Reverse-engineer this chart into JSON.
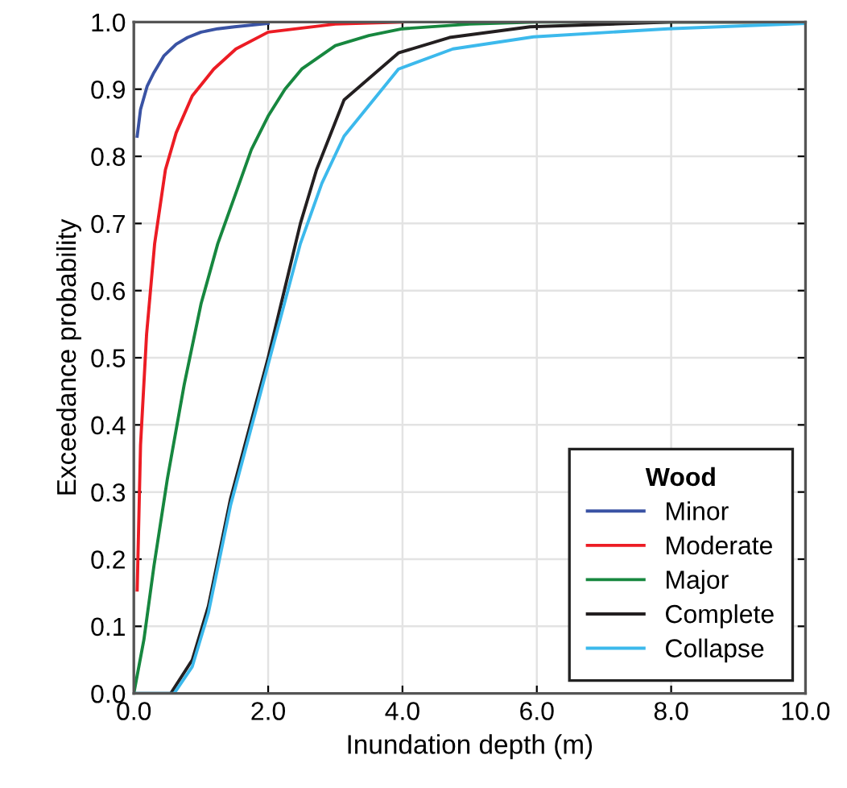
{
  "chart_data": {
    "type": "line",
    "xlabel": "Inundation depth (m)",
    "ylabel": "Exceedance probability",
    "legend_title": "Wood",
    "xlim": [
      0,
      10
    ],
    "ylim": [
      0,
      1
    ],
    "xticks": [
      {
        "value": 0,
        "label": "0.0"
      },
      {
        "value": 2,
        "label": "2.0"
      },
      {
        "value": 4,
        "label": "4.0"
      },
      {
        "value": 6,
        "label": "6.0"
      },
      {
        "value": 8,
        "label": "8.0"
      },
      {
        "value": 10,
        "label": "10.0"
      }
    ],
    "yticks": [
      {
        "value": 0,
        "label": "0.0"
      },
      0.1,
      0.2,
      0.3,
      0.4,
      0.5,
      0.6,
      0.7,
      0.8,
      0.9,
      {
        "value": 1,
        "label": "1.0"
      }
    ],
    "grid": true,
    "legend": "bottom right",
    "marker": "none",
    "line_style": "solid",
    "series": [
      {
        "name": "Minor",
        "color": "#3a53a4",
        "x": [
          0.05,
          0.1,
          0.2,
          0.3,
          0.45,
          0.63,
          0.8,
          1.0,
          1.25,
          1.5,
          2.0
        ],
        "values": [
          0.83,
          0.87,
          0.905,
          0.925,
          0.95,
          0.967,
          0.977,
          0.985,
          0.99,
          0.993,
          0.998
        ]
      },
      {
        "name": "Moderate",
        "color": "#ec1c24",
        "x": [
          0.05,
          0.1,
          0.19,
          0.31,
          0.47,
          0.63,
          0.87,
          1.19,
          1.52,
          2.0,
          3.0,
          4.0
        ],
        "values": [
          0.154,
          0.37,
          0.535,
          0.67,
          0.78,
          0.835,
          0.89,
          0.93,
          0.96,
          0.985,
          0.997,
          1
        ]
      },
      {
        "name": "Major",
        "color": "#17873f",
        "x": [
          0,
          0.15,
          0.3,
          0.5,
          0.75,
          1.0,
          1.25,
          1.5,
          1.75,
          2.0,
          2.25,
          2.5,
          3.0,
          3.5,
          4.0,
          5,
          6,
          10
        ],
        "values": [
          0,
          0.08,
          0.19,
          0.32,
          0.46,
          0.58,
          0.67,
          0.74,
          0.81,
          0.86,
          0.9,
          0.93,
          0.965,
          0.98,
          0.99,
          0.997,
          1,
          1
        ]
      },
      {
        "name": "Complete",
        "color": "#231f20",
        "x": [
          0,
          0.55,
          0.87,
          1.11,
          1.44,
          1.76,
          2.0,
          2.24,
          2.48,
          2.72,
          3.13,
          3.94,
          4.7,
          5.9,
          8,
          10
        ],
        "values": [
          0,
          0,
          0.05,
          0.13,
          0.29,
          0.41,
          0.5,
          0.6,
          0.7,
          0.78,
          0.884,
          0.954,
          0.977,
          0.993,
          1,
          1
        ]
      },
      {
        "name": "Collapse",
        "color": "#3cb9ec",
        "x": [
          0,
          0.6,
          0.87,
          1.11,
          1.44,
          1.76,
          2.0,
          2.24,
          2.48,
          2.8,
          3.13,
          3.94,
          4.75,
          5.95,
          7.95,
          10
        ],
        "values": [
          0,
          0,
          0.04,
          0.12,
          0.28,
          0.4,
          0.49,
          0.58,
          0.67,
          0.76,
          0.83,
          0.93,
          0.96,
          0.978,
          0.99,
          0.998
        ]
      }
    ]
  }
}
